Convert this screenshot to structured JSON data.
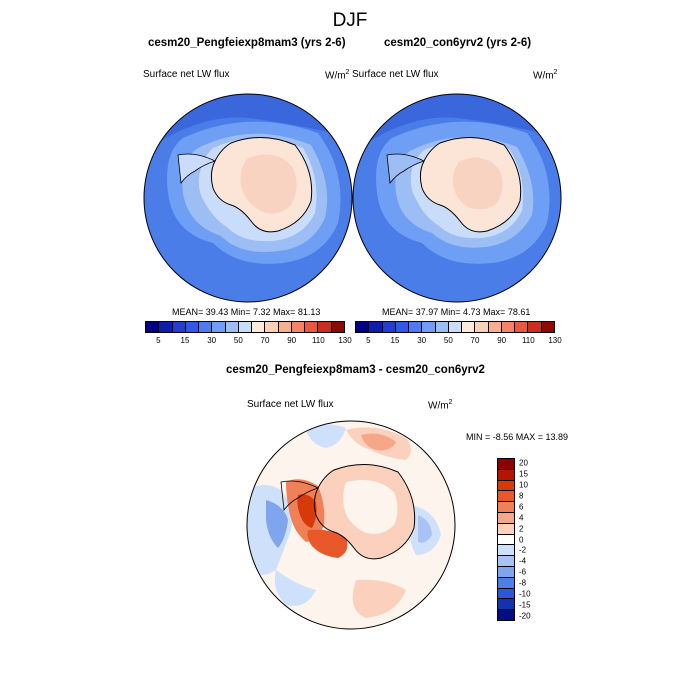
{
  "chart_data": [
    {
      "type": "map",
      "projection": "south-polar-stereographic",
      "title": "cesm20_Pengfeiexp8mam3 (yrs 2-6)",
      "variable": "Surface net LW flux",
      "units": "W/m",
      "units_exp": "2",
      "stats_text": "MEAN=  39.43  Min=   7.32  Max=  81.13",
      "mean": 39.43,
      "min": 7.32,
      "max": 81.13,
      "colorbar_levels": [
        5,
        10,
        15,
        20,
        30,
        40,
        50,
        60,
        70,
        80,
        90,
        100,
        110,
        120,
        130
      ],
      "colorbar_tick_labels": [
        "5",
        "15",
        "30",
        "50",
        "70",
        "90",
        "110",
        "130"
      ]
    },
    {
      "type": "map",
      "projection": "south-polar-stereographic",
      "title": "cesm20_con6yrv2 (yrs 2-6)",
      "variable": "Surface net LW flux",
      "units": "W/m",
      "units_exp": "2",
      "stats_text": "MEAN=  37.97  Min=   4.73  Max=  78.61",
      "mean": 37.97,
      "min": 4.73,
      "max": 78.61,
      "colorbar_levels": [
        5,
        10,
        15,
        20,
        30,
        40,
        50,
        60,
        70,
        80,
        90,
        100,
        110,
        120,
        130
      ],
      "colorbar_tick_labels": [
        "5",
        "15",
        "30",
        "50",
        "70",
        "90",
        "110",
        "130"
      ]
    },
    {
      "type": "map",
      "projection": "south-polar-stereographic",
      "title": "cesm20_Pengfeiexp8mam3 - cesm20_con6yrv2",
      "variable": "Surface net LW flux",
      "units": "W/m",
      "units_exp": "2",
      "stats_text": "MIN =  -8.56 MAX =  13.89",
      "min": -8.56,
      "max": 13.89,
      "colorbar_levels": [
        20,
        15,
        10,
        8,
        6,
        4,
        2,
        0,
        -2,
        -4,
        -6,
        -8,
        -10,
        -15,
        -20
      ],
      "colorbar_tick_labels": [
        "20",
        "15",
        "10",
        "8",
        "6",
        "4",
        "2",
        "0",
        "-2",
        "-4",
        "-6",
        "-8",
        "-10",
        "-15",
        "-20"
      ]
    }
  ],
  "figure_title": "DJF",
  "colors": {
    "abs_scale": [
      "#00007f",
      "#0d1fa6",
      "#1f3fcc",
      "#2e5be6",
      "#4a7df0",
      "#6f9ef5",
      "#9bbef7",
      "#c9dcf9",
      "#ffe9d9",
      "#fcd0b5",
      "#f9ae8d",
      "#f48563",
      "#e85a3c",
      "#c9301b",
      "#8c0a00"
    ],
    "diff_scale": [
      "#8b0000",
      "#b31500",
      "#d63a0a",
      "#e8582a",
      "#f08058",
      "#f6a787",
      "#fbd0bd",
      "#ffffff",
      "#cfe0fa",
      "#a9c4f4",
      "#7fa5ee",
      "#4f7fe6",
      "#2c57d6",
      "#1332b0",
      "#000f7f"
    ],
    "ocean_abs": "#4a7de8",
    "ocean_abs_deep": "#3a68dc",
    "ice_shelf_abs": "#9dbdf5",
    "coast_halo_abs": "#c9dcf9",
    "land_abs": "#fce4d6",
    "land_core_abs": "#f8d3c2",
    "diff_bg": "#fdf4ee"
  }
}
